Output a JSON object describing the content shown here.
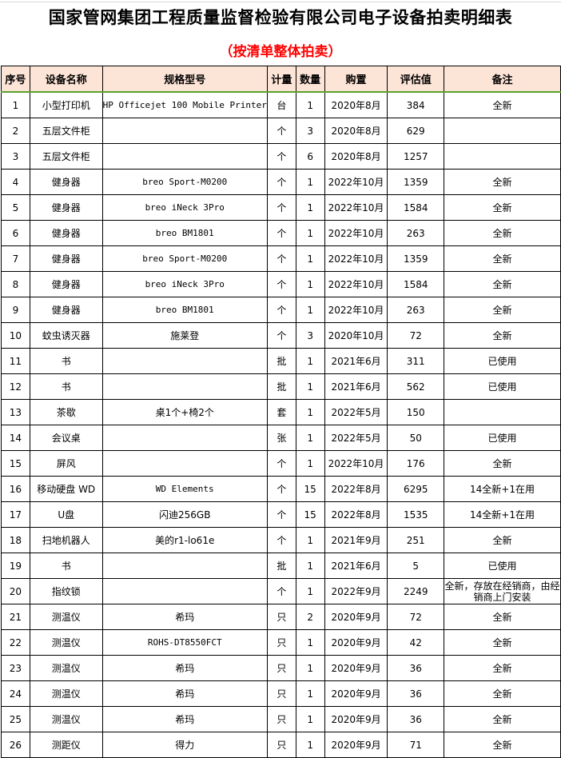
{
  "title": "国家管网集团工程质量监督检验有限公司电子设备拍卖明细表",
  "subtitle": "（按清单整体拍卖）",
  "colors": {
    "header_bg": "#fce4d6",
    "subtitle": "#ff0000",
    "header_divider": "#5aa02c"
  },
  "columns": [
    "序号",
    "设备名称",
    "规格型号",
    "计量",
    "数量",
    "购置",
    "评估值",
    "备注"
  ],
  "rows": [
    [
      "1",
      "小型打印机",
      "HP Officejet 100 Mobile Printer",
      "台",
      "1",
      "2020年8月",
      "384",
      "全新"
    ],
    [
      "2",
      "五层文件柜",
      "",
      "个",
      "3",
      "2020年8月",
      "629",
      ""
    ],
    [
      "3",
      "五层文件柜",
      "",
      "个",
      "6",
      "2020年8月",
      "1257",
      ""
    ],
    [
      "4",
      "健身器",
      "breo Sport-M0200",
      "个",
      "1",
      "2022年10月",
      "1359",
      "全新"
    ],
    [
      "5",
      "健身器",
      "breo iNeck 3Pro",
      "个",
      "1",
      "2022年10月",
      "1584",
      "全新"
    ],
    [
      "6",
      "健身器",
      "breo BM1801",
      "个",
      "1",
      "2022年10月",
      "263",
      "全新"
    ],
    [
      "7",
      "健身器",
      "breo Sport-M0200",
      "个",
      "1",
      "2022年10月",
      "1359",
      "全新"
    ],
    [
      "8",
      "健身器",
      "breo iNeck 3Pro",
      "个",
      "1",
      "2022年10月",
      "1584",
      "全新"
    ],
    [
      "9",
      "健身器",
      "breo BM1801",
      "个",
      "1",
      "2022年10月",
      "263",
      "全新"
    ],
    [
      "10",
      "蚊虫诱灭器",
      "施莱登",
      "个",
      "3",
      "2020年10月",
      "72",
      "全新"
    ],
    [
      "11",
      "书",
      "",
      "批",
      "1",
      "2021年6月",
      "311",
      "已使用"
    ],
    [
      "12",
      "书",
      "",
      "批",
      "1",
      "2021年6月",
      "562",
      "已使用"
    ],
    [
      "13",
      "茶歇",
      "桌1个+椅2个",
      "套",
      "1",
      "2022年5月",
      "150",
      ""
    ],
    [
      "14",
      "会议桌",
      "",
      "张",
      "1",
      "2022年5月",
      "50",
      "已使用"
    ],
    [
      "15",
      "屏风",
      "",
      "个",
      "1",
      "2022年10月",
      "176",
      "全新"
    ],
    [
      "16",
      "移动硬盘 WD",
      "WD Elements",
      "个",
      "15",
      "2022年8月",
      "6295",
      "14全新+1在用"
    ],
    [
      "17",
      "U盘",
      "闪迪256GB",
      "个",
      "15",
      "2022年8月",
      "1535",
      "14全新+1在用"
    ],
    [
      "18",
      "扫地机器人",
      "美的r1-lo61e",
      "个",
      "1",
      "2021年9月",
      "251",
      "全新"
    ],
    [
      "19",
      "书",
      "",
      "批",
      "1",
      "2021年6月",
      "5",
      "已使用"
    ],
    [
      "20",
      "指纹锁",
      "",
      "个",
      "1",
      "2022年9月",
      "2249",
      "全新，存放在经销商，由经销商上门安装"
    ],
    [
      "21",
      "测温仪",
      "希玛",
      "只",
      "2",
      "2020年9月",
      "72",
      "全新"
    ],
    [
      "22",
      "测温仪",
      "ROHS-DT8550FCT",
      "只",
      "1",
      "2020年9月",
      "42",
      "全新"
    ],
    [
      "23",
      "测温仪",
      "希玛",
      "只",
      "1",
      "2020年9月",
      "36",
      "全新"
    ],
    [
      "24",
      "测温仪",
      "希玛",
      "只",
      "1",
      "2020年9月",
      "36",
      "全新"
    ],
    [
      "25",
      "测温仪",
      "希玛",
      "只",
      "1",
      "2020年9月",
      "36",
      "全新"
    ],
    [
      "26",
      "测距仪",
      "得力",
      "只",
      "1",
      "2020年9月",
      "71",
      "全新"
    ]
  ]
}
